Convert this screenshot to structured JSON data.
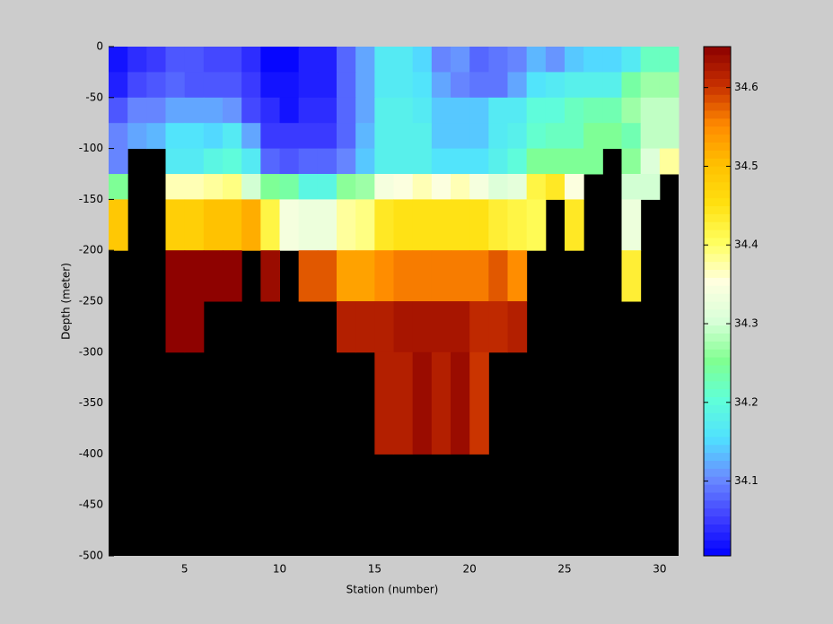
{
  "chart_data": {
    "type": "heatmap",
    "xlabel": "Station (number)",
    "ylabel": "Depth (meter)",
    "xlim": [
      1,
      31
    ],
    "xticks": [
      5,
      10,
      15,
      20,
      25,
      30
    ],
    "ylim": [
      -500,
      0
    ],
    "yticks": [
      -500,
      -450,
      -400,
      -350,
      -300,
      -250,
      -200,
      -150,
      -100,
      -50,
      0
    ],
    "y_edges": [
      0,
      -25,
      -50,
      -75,
      -100,
      -125,
      -150,
      -200,
      -250,
      -300,
      -400
    ],
    "background": "#000000",
    "values": [
      [
        34.02,
        34.04,
        34.05,
        34.07,
        34.07,
        34.06,
        34.06,
        34.04,
        34.01,
        34.01,
        34.03,
        34.03,
        34.08,
        34.12,
        34.17,
        34.17,
        34.15,
        34.1,
        34.11,
        34.08,
        34.09,
        34.1,
        34.13,
        34.11,
        34.14,
        34.15,
        34.15,
        34.17,
        34.22,
        34.22
      ],
      [
        34.03,
        34.06,
        34.07,
        34.08,
        34.07,
        34.07,
        34.07,
        34.05,
        34.02,
        34.02,
        34.03,
        34.03,
        34.08,
        34.12,
        34.17,
        34.17,
        34.16,
        34.12,
        34.1,
        34.09,
        34.09,
        34.12,
        34.16,
        34.17,
        34.18,
        34.18,
        34.18,
        34.24,
        34.27,
        34.27
      ],
      [
        34.07,
        34.1,
        34.1,
        34.12,
        34.12,
        34.12,
        34.11,
        34.06,
        34.04,
        34.02,
        34.04,
        34.04,
        34.08,
        34.12,
        34.18,
        34.18,
        34.17,
        34.14,
        34.14,
        34.14,
        34.17,
        34.17,
        34.2,
        34.2,
        34.22,
        34.23,
        34.23,
        34.27,
        34.29,
        34.29
      ],
      [
        34.1,
        34.12,
        34.13,
        34.16,
        34.16,
        34.15,
        34.17,
        34.12,
        34.05,
        34.05,
        34.05,
        34.05,
        34.08,
        34.13,
        34.18,
        34.18,
        34.18,
        34.14,
        34.14,
        34.14,
        34.17,
        34.18,
        34.21,
        34.22,
        34.22,
        34.25,
        34.25,
        34.23,
        34.29,
        34.29
      ],
      [
        34.1,
        null,
        null,
        34.17,
        34.17,
        34.19,
        34.2,
        34.17,
        34.08,
        34.07,
        34.08,
        34.08,
        34.1,
        34.14,
        34.18,
        34.18,
        34.18,
        34.16,
        34.16,
        34.16,
        34.18,
        34.2,
        34.25,
        34.25,
        34.25,
        34.25,
        null,
        34.26,
        34.31,
        34.38
      ],
      [
        34.25,
        null,
        null,
        34.37,
        34.37,
        34.38,
        34.39,
        34.3,
        34.25,
        34.24,
        34.19,
        34.19,
        34.26,
        34.27,
        34.34,
        34.35,
        34.37,
        34.35,
        34.37,
        34.34,
        34.31,
        34.32,
        34.42,
        34.44,
        34.35,
        null,
        null,
        34.3,
        34.3,
        null
      ],
      [
        34.49,
        null,
        null,
        34.48,
        34.48,
        34.5,
        34.5,
        34.52,
        34.42,
        34.34,
        34.33,
        34.33,
        34.38,
        34.39,
        34.44,
        34.45,
        34.45,
        34.45,
        34.45,
        34.45,
        34.43,
        34.42,
        34.41,
        null,
        34.44,
        null,
        null,
        34.33,
        null,
        null
      ],
      [
        null,
        null,
        null,
        34.65,
        34.65,
        34.65,
        34.65,
        null,
        34.64,
        null,
        34.58,
        34.58,
        34.53,
        34.53,
        34.55,
        34.56,
        34.56,
        34.56,
        34.56,
        34.56,
        34.58,
        34.55,
        null,
        null,
        null,
        null,
        null,
        34.43,
        null,
        null
      ],
      [
        null,
        null,
        null,
        34.65,
        34.65,
        null,
        null,
        null,
        null,
        null,
        null,
        null,
        34.62,
        34.62,
        34.62,
        34.63,
        34.63,
        34.63,
        34.63,
        34.61,
        34.61,
        34.62,
        null,
        null,
        null,
        null,
        null,
        null,
        null,
        null
      ],
      [
        null,
        null,
        null,
        null,
        null,
        null,
        null,
        null,
        null,
        null,
        null,
        null,
        null,
        null,
        34.62,
        34.62,
        34.64,
        34.62,
        34.64,
        34.6,
        null,
        null,
        null,
        null,
        null,
        null,
        null,
        null,
        null,
        null
      ]
    ],
    "colorbar": {
      "clim": [
        34.005,
        34.652
      ],
      "ticks": [
        34.1,
        34.2,
        34.3,
        34.4,
        34.5,
        34.6
      ],
      "colormap": [
        "#0000ff",
        "#4040ff",
        "#6a8cff",
        "#50e0ff",
        "#60ffd8",
        "#80ff90",
        "#d8ffd8",
        "#ffffe0",
        "#ffff60",
        "#ffe010",
        "#ffc000",
        "#ff8a00",
        "#c83000",
        "#8c0000"
      ]
    }
  }
}
